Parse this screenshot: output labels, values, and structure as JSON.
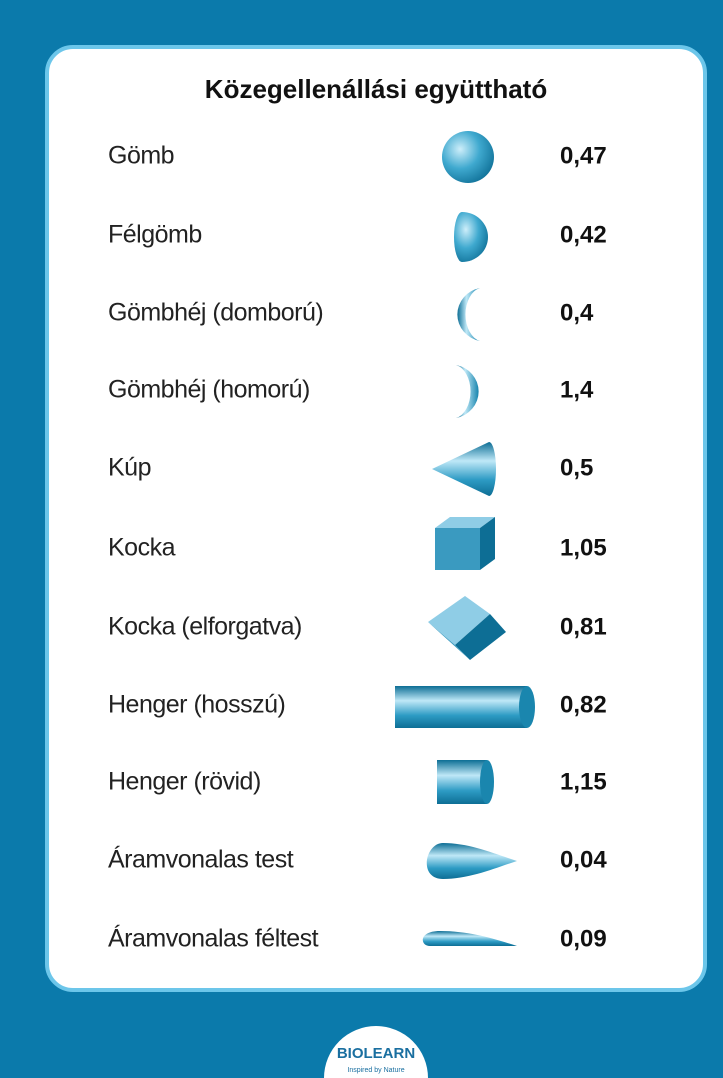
{
  "header": {
    "title": "Közegellenállási együttható"
  },
  "rows": [
    {
      "label": "Gömb",
      "value": "0,47"
    },
    {
      "label": "Félgömb",
      "value": "0,42"
    },
    {
      "label": "Gömbhéj (domború)",
      "value": "0,4"
    },
    {
      "label": "Gömbhéj (homorú)",
      "value": "1,4"
    },
    {
      "label": "Kúp",
      "value": "0,5"
    },
    {
      "label": "Kocka",
      "value": "1,05"
    },
    {
      "label": "Kocka (elforgatva)",
      "value": "0,81"
    },
    {
      "label": "Henger (hosszú)",
      "value": "0,82"
    },
    {
      "label": "Henger (rövid)",
      "value": "1,15"
    },
    {
      "label": "Áramvonalas test",
      "value": "0,04"
    },
    {
      "label": "Áramvonalas féltest",
      "value": "0,09"
    }
  ],
  "logo": {
    "name": "BIOLEARN",
    "tagline": "Inspired by Nature"
  }
}
